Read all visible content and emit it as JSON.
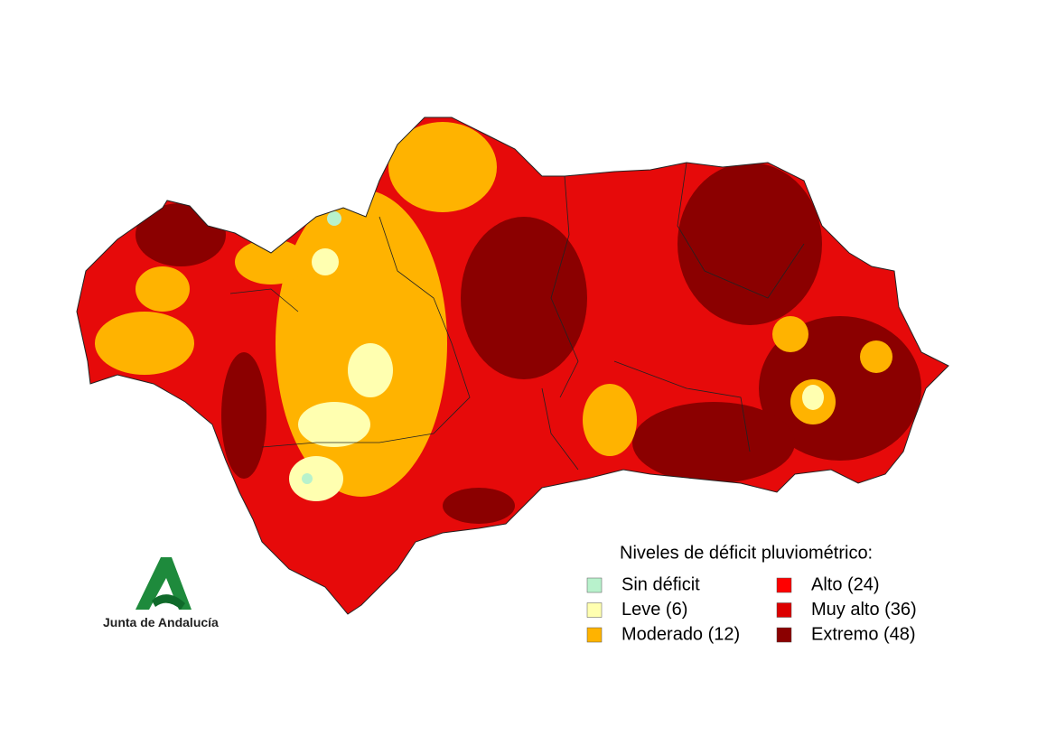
{
  "legend": {
    "title": "Niveles de déficit pluviométrico:",
    "items": [
      {
        "label": "Sin déficit",
        "color": "#b8f2cc"
      },
      {
        "label": "Leve (6)",
        "color": "#ffffb0"
      },
      {
        "label": "Moderado (12)",
        "color": "#ffb300"
      },
      {
        "label": "Alto (24)",
        "color": "#ff0000"
      },
      {
        "label": "Muy alto (36)",
        "color": "#dc0000"
      },
      {
        "label": "Extremo (48)",
        "color": "#8b0000"
      }
    ]
  },
  "logo": {
    "text": "Junta de Andalucía"
  }
}
